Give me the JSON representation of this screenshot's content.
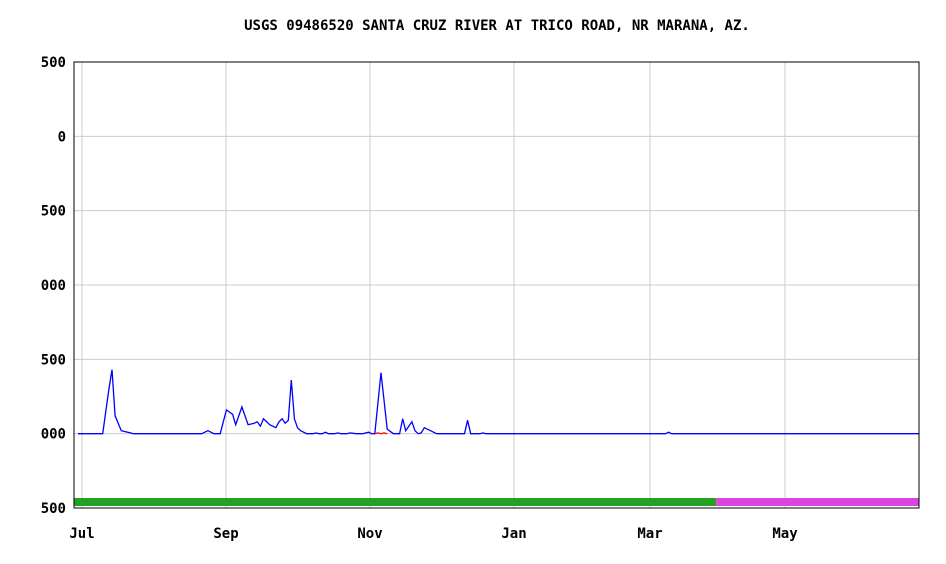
{
  "chart_data": {
    "type": "line",
    "title": "USGS 09486520 SANTA CRUZ RIVER AT TRICO ROAD, NR MARANA, AZ.",
    "xlabel": "",
    "ylabel": "",
    "x_ticks": [
      "Jul",
      "Sep",
      "Nov",
      "Jan",
      "Mar",
      "May"
    ],
    "y_ticks": [
      "500",
      "0",
      "500",
      "000",
      "500",
      "000",
      "500"
    ],
    "ylim": [
      -500,
      2500
    ],
    "grid": true,
    "series": [
      {
        "color": "#0000ff",
        "x": [
          0,
          8,
          10,
          11,
          12,
          14,
          18,
          40,
          42,
          44,
          46,
          48,
          50,
          51,
          53,
          55,
          57,
          58,
          59,
          60,
          62,
          64,
          65,
          66,
          67,
          68,
          69,
          70,
          71,
          72,
          74,
          75,
          76,
          77,
          78,
          79,
          80,
          81,
          82,
          83,
          84,
          85,
          86,
          87,
          88,
          90,
          92,
          94,
          95,
          96,
          98,
          100,
          102,
          104,
          105,
          106,
          107,
          108,
          109,
          110,
          111,
          112,
          114,
          115,
          116,
          118,
          125,
          126,
          127,
          128,
          129,
          130,
          131,
          132,
          133,
          135,
          140,
          150,
          155,
          160,
          175,
          186,
          189,
          190,
          191,
          192,
          193,
          195,
          200,
          205,
          210,
          212,
          214,
          216,
          218,
          220,
          222,
          224,
          225,
          226,
          227,
          228,
          229,
          230,
          231,
          232,
          233,
          235,
          238,
          240,
          245,
          250,
          252,
          254,
          256,
          260,
          264,
          268,
          272
        ],
        "y": [
          0,
          0,
          300,
          430,
          120,
          20,
          0,
          0,
          20,
          0,
          0,
          160,
          130,
          60,
          180,
          60,
          70,
          80,
          50,
          100,
          60,
          40,
          80,
          100,
          70,
          90,
          360,
          100,
          40,
          20,
          0,
          0,
          0,
          5,
          0,
          0,
          10,
          0,
          0,
          0,
          5,
          0,
          0,
          0,
          5,
          0,
          0,
          10,
          0,
          0,
          410,
          30,
          0,
          0,
          100,
          20,
          50,
          80,
          20,
          0,
          5,
          40,
          20,
          10,
          0,
          0,
          0,
          90,
          0,
          0,
          0,
          0,
          5,
          0,
          0,
          0,
          0,
          0,
          0,
          0,
          0,
          0,
          0,
          0,
          10,
          0,
          0,
          0,
          0,
          0,
          0,
          0,
          0,
          0,
          0,
          0,
          0,
          0,
          0,
          0,
          0,
          0,
          0,
          0,
          0,
          0,
          0,
          0,
          0,
          0,
          0,
          0,
          0,
          0,
          0,
          0,
          0,
          0,
          0
        ]
      },
      {
        "color": "#ff0000",
        "x": [
          96,
          97,
          98,
          99,
          100
        ],
        "y": [
          0,
          5,
          0,
          5,
          0
        ]
      }
    ],
    "bottom_bar": [
      {
        "color": "#22a222",
        "from": 0,
        "to": 0.76
      },
      {
        "color": "#dd44dd",
        "from": 0.76,
        "to": 1
      }
    ]
  }
}
